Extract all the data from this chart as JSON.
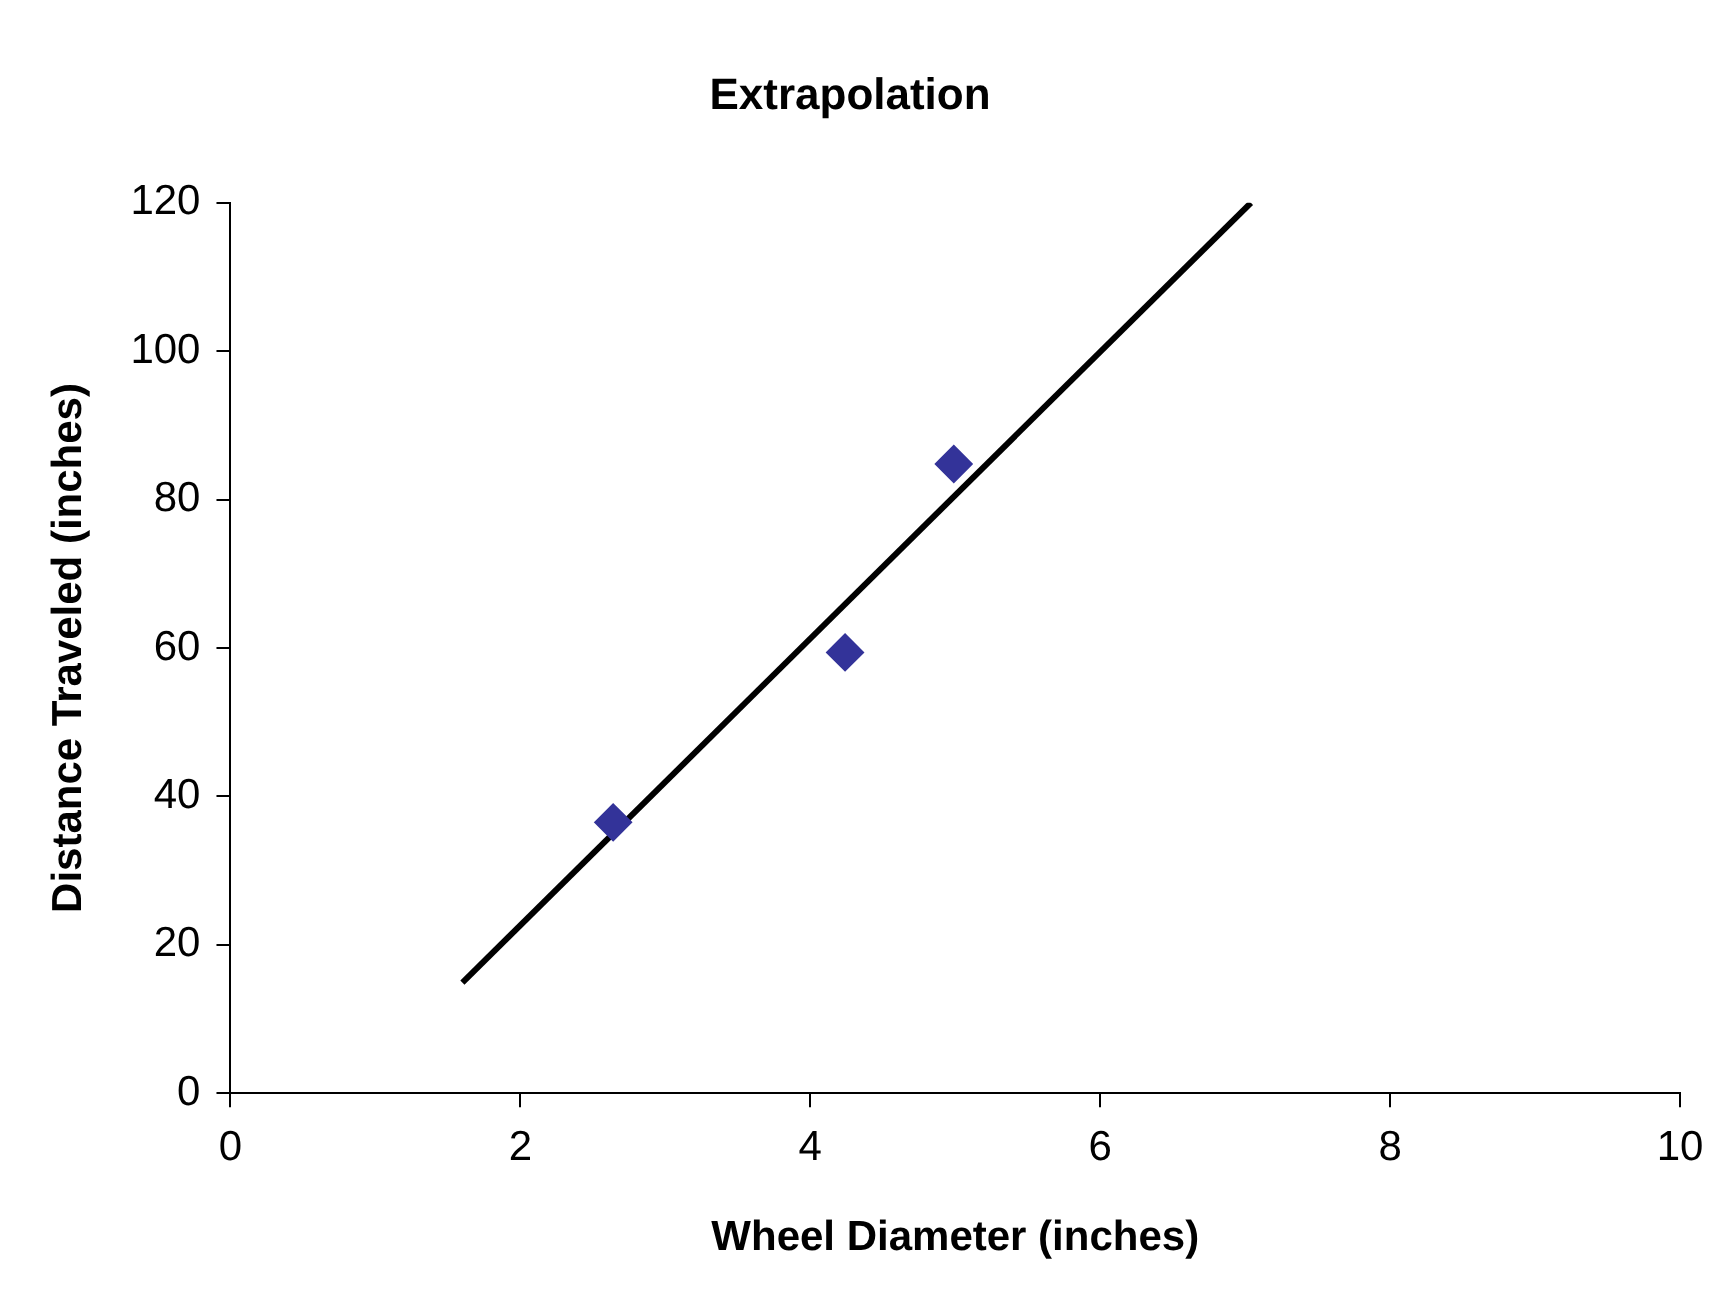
{
  "chart_data": {
    "type": "scatter",
    "title": "Extrapolation",
    "xlabel": "Wheel Diameter (inches)",
    "ylabel": "Distance Traveled (inches)",
    "xlim": [
      0,
      10
    ],
    "xticks": [
      0,
      2,
      4,
      6,
      8,
      10
    ],
    "ylim": [
      0,
      120
    ],
    "yticks": [
      0,
      20,
      40,
      60,
      80,
      100,
      120
    ],
    "series": [
      {
        "color": "#333399",
        "x": [
          2.64,
          4.24,
          4.99
        ],
        "values": [
          36.5,
          59.4,
          84.8
        ],
        "marker": "diamond"
      },
      {
        "type": "line",
        "color": "#000000",
        "x": [
          1.6,
          7.04
        ],
        "values": [
          14.9,
          120
        ],
        "marker": "none",
        "line_style": "solid"
      }
    ],
    "grid": false,
    "legend": false
  }
}
